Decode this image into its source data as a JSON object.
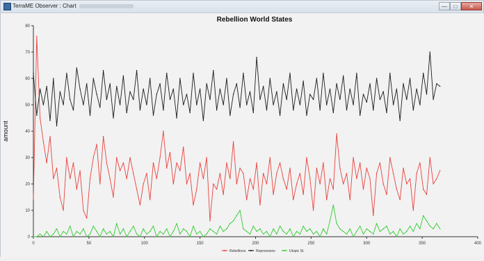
{
  "window": {
    "title": "TerraME Observer : Chart",
    "minimize_symbol": "—",
    "maximize_symbol": "□",
    "close_symbol": "✕",
    "icon": "app-icon"
  },
  "chart_data": {
    "type": "line",
    "title": "Rebellion World States",
    "xlabel": "",
    "ylabel": "amount",
    "xlim": [
      0,
      400
    ],
    "ylim": [
      0,
      80
    ],
    "x_ticks": [
      0,
      50,
      100,
      150,
      200,
      250,
      300,
      350,
      400
    ],
    "y_ticks": [
      0,
      10,
      20,
      30,
      40,
      50,
      60,
      70,
      80
    ],
    "grid": false,
    "legend_position": "bottom",
    "colors": {
      "Rebellions": "#e8413c",
      "Repressions": "#1a1a1a",
      "Utopic St.": "#2ecc2e"
    },
    "series": [
      {
        "name": "Rebellions",
        "color": "#e8413c",
        "x": [
          0,
          3,
          6,
          9,
          12,
          15,
          18,
          21,
          24,
          27,
          30,
          33,
          36,
          39,
          42,
          45,
          48,
          51,
          54,
          57,
          60,
          63,
          66,
          69,
          72,
          75,
          78,
          81,
          84,
          87,
          90,
          93,
          96,
          99,
          102,
          105,
          108,
          111,
          114,
          117,
          120,
          123,
          126,
          129,
          132,
          135,
          138,
          141,
          144,
          147,
          150,
          153,
          156,
          159,
          162,
          165,
          168,
          171,
          174,
          177,
          180,
          183,
          186,
          189,
          192,
          195,
          198,
          201,
          204,
          207,
          210,
          213,
          216,
          219,
          222,
          225,
          228,
          231,
          234,
          237,
          240,
          243,
          246,
          249,
          252,
          255,
          258,
          261,
          264,
          267,
          270,
          273,
          276,
          279,
          282,
          285,
          288,
          291,
          294,
          297,
          300,
          303,
          306,
          309,
          312,
          315,
          318,
          321,
          324,
          327,
          330,
          333,
          336,
          339,
          342,
          345,
          348,
          351,
          354,
          357,
          360,
          363,
          366
        ],
        "values": [
          14,
          76,
          45,
          36,
          28,
          38,
          22,
          26,
          15,
          10,
          30,
          22,
          28,
          18,
          25,
          10,
          7,
          22,
          30,
          35,
          20,
          38,
          28,
          22,
          15,
          30,
          25,
          28,
          22,
          30,
          24,
          18,
          12,
          20,
          24,
          14,
          28,
          22,
          30,
          40,
          26,
          32,
          20,
          28,
          25,
          34,
          20,
          24,
          12,
          18,
          28,
          22,
          30,
          6,
          20,
          18,
          24,
          16,
          28,
          22,
          36,
          20,
          26,
          24,
          14,
          22,
          18,
          28,
          12,
          24,
          20,
          30,
          16,
          24,
          28,
          22,
          18,
          26,
          14,
          20,
          24,
          16,
          30,
          22,
          10,
          26,
          20,
          28,
          14,
          22,
          18,
          39,
          26,
          20,
          24,
          14,
          30,
          22,
          28,
          18,
          26,
          22,
          8,
          24,
          28,
          20,
          16,
          30,
          24,
          18,
          14,
          26,
          20,
          22,
          10,
          24,
          28,
          18,
          16,
          30,
          20,
          22,
          25
        ]
      },
      {
        "name": "Repressions",
        "color": "#1a1a1a",
        "x": [
          0,
          3,
          6,
          9,
          12,
          15,
          18,
          21,
          24,
          27,
          30,
          33,
          36,
          39,
          42,
          45,
          48,
          51,
          54,
          57,
          60,
          63,
          66,
          69,
          72,
          75,
          78,
          81,
          84,
          87,
          90,
          93,
          96,
          99,
          102,
          105,
          108,
          111,
          114,
          117,
          120,
          123,
          126,
          129,
          132,
          135,
          138,
          141,
          144,
          147,
          150,
          153,
          156,
          159,
          162,
          165,
          168,
          171,
          174,
          177,
          180,
          183,
          186,
          189,
          192,
          195,
          198,
          201,
          204,
          207,
          210,
          213,
          216,
          219,
          222,
          225,
          228,
          231,
          234,
          237,
          240,
          243,
          246,
          249,
          252,
          255,
          258,
          261,
          264,
          267,
          270,
          273,
          276,
          279,
          282,
          285,
          288,
          291,
          294,
          297,
          300,
          303,
          306,
          309,
          312,
          315,
          318,
          321,
          324,
          327,
          330,
          333,
          336,
          339,
          342,
          345,
          348,
          351,
          354,
          357,
          360,
          363,
          366
        ],
        "values": [
          62,
          46,
          56,
          50,
          57,
          44,
          60,
          42,
          55,
          50,
          62,
          52,
          48,
          64,
          56,
          50,
          58,
          46,
          60,
          54,
          49,
          63,
          52,
          58,
          45,
          57,
          50,
          61,
          47,
          55,
          52,
          63,
          48,
          56,
          50,
          60,
          46,
          54,
          58,
          48,
          62,
          52,
          56,
          45,
          60,
          50,
          54,
          47,
          62,
          50,
          56,
          44,
          58,
          52,
          63,
          48,
          56,
          50,
          60,
          46,
          54,
          58,
          49,
          62,
          50,
          55,
          47,
          68,
          52,
          57,
          48,
          60,
          50,
          55,
          46,
          58,
          52,
          62,
          48,
          56,
          50,
          59,
          46,
          54,
          52,
          60,
          48,
          62,
          50,
          56,
          47,
          58,
          52,
          61,
          48,
          56,
          50,
          62,
          46,
          54,
          51,
          58,
          48,
          60,
          52,
          55,
          47,
          62,
          50,
          56,
          44,
          58,
          52,
          60,
          48,
          56,
          50,
          62,
          54,
          70,
          52,
          58,
          57
        ]
      },
      {
        "name": "Utopic St.",
        "color": "#2ecc2e",
        "x": [
          0,
          3,
          6,
          9,
          12,
          15,
          18,
          21,
          24,
          27,
          30,
          33,
          36,
          39,
          42,
          45,
          48,
          51,
          54,
          57,
          60,
          63,
          66,
          69,
          72,
          75,
          78,
          81,
          84,
          87,
          90,
          93,
          96,
          99,
          102,
          105,
          108,
          111,
          114,
          117,
          120,
          123,
          126,
          129,
          132,
          135,
          138,
          141,
          144,
          147,
          150,
          153,
          156,
          159,
          162,
          165,
          168,
          171,
          174,
          177,
          180,
          183,
          186,
          189,
          192,
          195,
          198,
          201,
          204,
          207,
          210,
          213,
          216,
          219,
          222,
          225,
          228,
          231,
          234,
          237,
          240,
          243,
          246,
          249,
          252,
          255,
          258,
          261,
          264,
          267,
          270,
          273,
          276,
          279,
          282,
          285,
          288,
          291,
          294,
          297,
          300,
          303,
          306,
          309,
          312,
          315,
          318,
          321,
          324,
          327,
          330,
          333,
          336,
          339,
          342,
          345,
          348,
          351,
          354,
          357,
          360,
          363,
          366
        ],
        "values": [
          0,
          0,
          1,
          0,
          2,
          0,
          1,
          3,
          0,
          2,
          1,
          4,
          0,
          2,
          1,
          3,
          0,
          1,
          4,
          2,
          0,
          3,
          1,
          2,
          0,
          5,
          1,
          3,
          0,
          2,
          4,
          1,
          0,
          3,
          1,
          2,
          4,
          0,
          2,
          1,
          3,
          0,
          2,
          5,
          1,
          3,
          2,
          0,
          4,
          1,
          2,
          0,
          1,
          3,
          2,
          1,
          4,
          2,
          3,
          5,
          6,
          8,
          10,
          3,
          2,
          1,
          4,
          2,
          3,
          1,
          2,
          0,
          3,
          1,
          4,
          2,
          1,
          3,
          0,
          2,
          1,
          4,
          2,
          3,
          1,
          2,
          0,
          3,
          1,
          6,
          12,
          5,
          3,
          2,
          1,
          3,
          0,
          2,
          4,
          1,
          3,
          2,
          1,
          5,
          2,
          3,
          4,
          1,
          2,
          0,
          3,
          1,
          2,
          4,
          2,
          5,
          3,
          8,
          6,
          4,
          3,
          5,
          3
        ]
      }
    ]
  }
}
